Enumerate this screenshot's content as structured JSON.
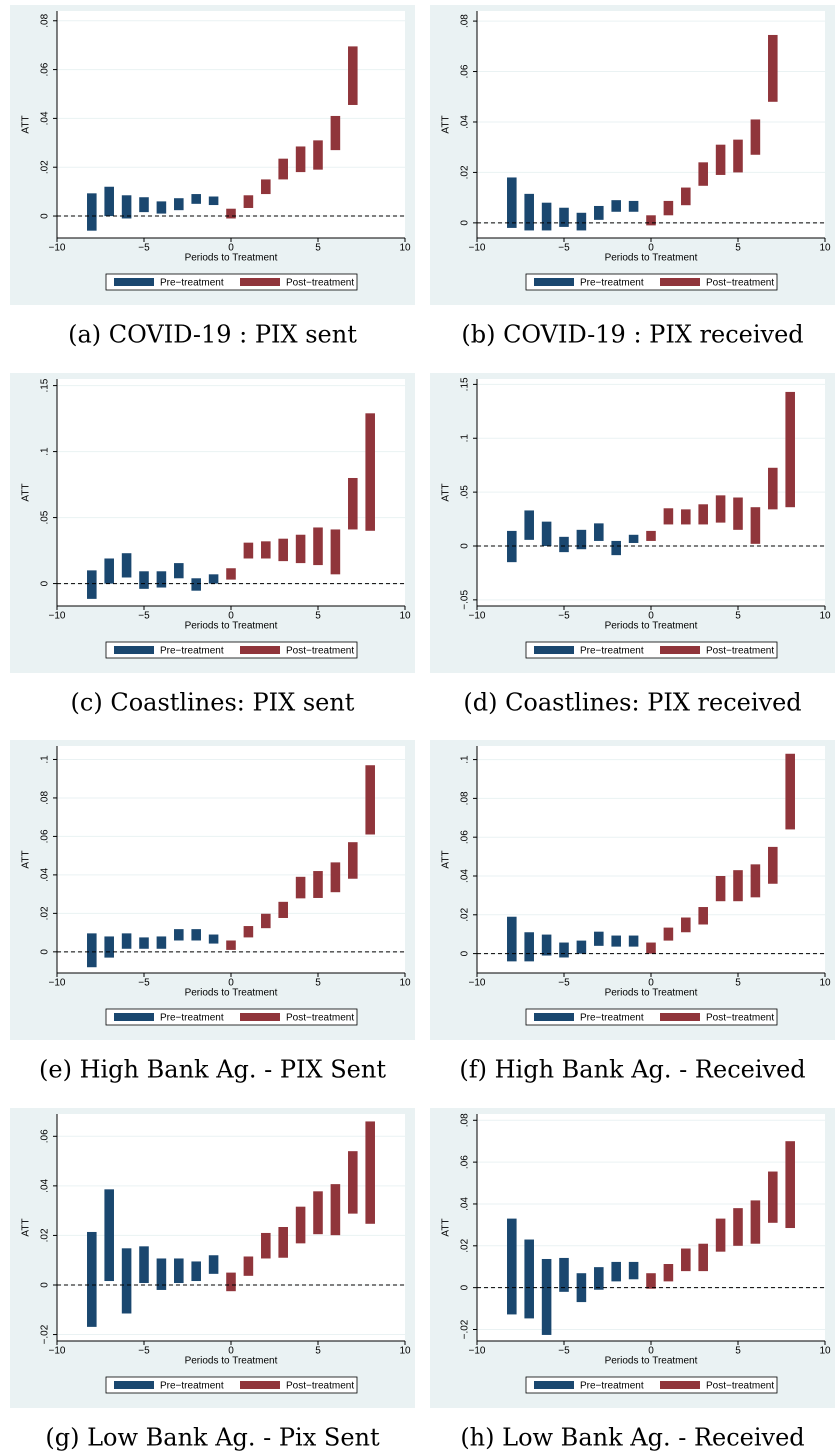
{
  "chart_data": [
    {
      "type": "rangebar",
      "caption": "(a) COVID-19 : PIX sent",
      "y_label": "ATT",
      "x_label": "Periods to Treatment",
      "xlim": [
        -10,
        10
      ],
      "xticks": [
        {
          "value": -10,
          "label": "−10"
        },
        {
          "value": -5,
          "label": "−5"
        },
        0,
        5,
        10
      ],
      "ylim": [
        -0.009,
        0.084
      ],
      "yticks": [
        0,
        {
          "value": 0.02,
          "label": ".02"
        },
        {
          "value": 0.04,
          "label": ".04"
        },
        {
          "value": 0.06,
          "label": ".06"
        },
        {
          "value": 0.08,
          "label": ".08"
        }
      ],
      "reference_line": 0,
      "grid": true,
      "series": [
        {
          "name": "Pre−treatment",
          "color": "#1a476f",
          "x": [
            -8,
            -7,
            -6,
            -5,
            -4,
            -3,
            -2,
            -1
          ],
          "low": [
            -0.006,
            0.0,
            -0.001,
            0.0016,
            0.001,
            0.0024,
            0.005,
            0.0045
          ],
          "high": [
            0.0093,
            0.012,
            0.0085,
            0.0077,
            0.006,
            0.0073,
            0.009,
            0.008
          ]
        },
        {
          "name": "Post−treatment",
          "color": "#90353b",
          "x": [
            0,
            1,
            2,
            3,
            4,
            5,
            6,
            7
          ],
          "low": [
            -0.001,
            0.0033,
            0.009,
            0.015,
            0.018,
            0.019,
            0.027,
            0.0455
          ],
          "high": [
            0.003,
            0.0085,
            0.015,
            0.0235,
            0.0285,
            0.031,
            0.041,
            0.0695
          ]
        }
      ]
    },
    {
      "type": "rangebar",
      "caption": "(b) COVID-19 : PIX received",
      "y_label": "ATT",
      "x_label": "Periods to Treatment",
      "xlim": [
        -10,
        10
      ],
      "xticks": [
        {
          "value": -10,
          "label": "−10"
        },
        {
          "value": -5,
          "label": "−5"
        },
        0,
        5,
        10
      ],
      "ylim": [
        -0.006,
        0.084
      ],
      "yticks": [
        0,
        {
          "value": 0.02,
          "label": ".02"
        },
        {
          "value": 0.04,
          "label": ".04"
        },
        {
          "value": 0.06,
          "label": ".06"
        },
        {
          "value": 0.08,
          "label": ".08"
        }
      ],
      "reference_line": 0,
      "grid": true,
      "series": [
        {
          "name": "Pre−treatment",
          "color": "#1a476f",
          "x": [
            -8,
            -7,
            -6,
            -5,
            -4,
            -3,
            -2,
            -1
          ],
          "low": [
            -0.002,
            -0.003,
            -0.003,
            -0.0016,
            -0.003,
            0.0012,
            0.0044,
            0.0044
          ],
          "high": [
            0.018,
            0.0115,
            0.008,
            0.006,
            0.004,
            0.0067,
            0.009,
            0.0087
          ]
        },
        {
          "name": "Post−treatment",
          "color": "#90353b",
          "x": [
            0,
            1,
            2,
            3,
            4,
            5,
            6,
            7
          ],
          "low": [
            -0.001,
            0.003,
            0.007,
            0.0147,
            0.019,
            0.02,
            0.027,
            0.048
          ],
          "high": [
            0.003,
            0.0087,
            0.014,
            0.024,
            0.031,
            0.033,
            0.041,
            0.0745
          ]
        }
      ]
    },
    {
      "type": "rangebar",
      "caption": "(c) Coastlines: PIX sent",
      "y_label": "ATT",
      "x_label": "Periods to Treatment",
      "xlim": [
        -10,
        10
      ],
      "xticks": [
        {
          "value": -10,
          "label": "−10"
        },
        {
          "value": -5,
          "label": "−5"
        },
        0,
        5,
        10
      ],
      "ylim": [
        -0.017,
        0.155
      ],
      "yticks": [
        0,
        {
          "value": 0.05,
          "label": ".05"
        },
        {
          "value": 0.1,
          "label": ".1"
        },
        {
          "value": 0.15,
          "label": ".15"
        }
      ],
      "reference_line": 0,
      "grid": true,
      "series": [
        {
          "name": "Pre−treatment",
          "color": "#1a476f",
          "x": [
            -8,
            -7,
            -6,
            -5,
            -4,
            -3,
            -2,
            -1
          ],
          "low": [
            -0.0116,
            0.0,
            0.0046,
            -0.004,
            -0.003,
            0.004,
            -0.0054,
            0.0
          ],
          "high": [
            0.01,
            0.019,
            0.023,
            0.0093,
            0.0093,
            0.0155,
            0.004,
            0.007
          ]
        },
        {
          "name": "Post−treatment",
          "color": "#90353b",
          "x": [
            0,
            1,
            2,
            3,
            4,
            5,
            6,
            7,
            8
          ],
          "low": [
            0.003,
            0.019,
            0.019,
            0.017,
            0.0155,
            0.014,
            0.007,
            0.041,
            0.04
          ],
          "high": [
            0.0116,
            0.031,
            0.032,
            0.034,
            0.037,
            0.0425,
            0.041,
            0.08,
            0.129
          ]
        }
      ]
    },
    {
      "type": "rangebar",
      "caption": "(d) Coastlines: PIX received",
      "y_label": "ATT",
      "x_label": "Periods to Treatment",
      "xlim": [
        -10,
        10
      ],
      "xticks": [
        {
          "value": -10,
          "label": "−10"
        },
        {
          "value": -5,
          "label": "−5"
        },
        0,
        5,
        10
      ],
      "ylim": [
        -0.0557,
        0.155
      ],
      "yticks": [
        {
          "value": -0.05,
          "label": "−.05"
        },
        0,
        {
          "value": 0.05,
          "label": ".05"
        },
        {
          "value": 0.1,
          "label": ".1"
        },
        {
          "value": 0.15,
          "label": ".15"
        }
      ],
      "reference_line": 0,
      "grid": true,
      "series": [
        {
          "name": "Pre−treatment",
          "color": "#1a476f",
          "x": [
            -8,
            -7,
            -6,
            -5,
            -4,
            -3,
            -2,
            -1
          ],
          "low": [
            -0.015,
            0.0057,
            0.0,
            -0.0057,
            -0.003,
            0.0047,
            -0.0085,
            0.0028
          ],
          "high": [
            0.014,
            0.033,
            0.0226,
            0.0085,
            0.015,
            0.021,
            0.0047,
            0.0104
          ]
        },
        {
          "name": "Post−treatment",
          "color": "#90353b",
          "x": [
            0,
            1,
            2,
            3,
            4,
            5,
            6,
            7,
            8
          ],
          "low": [
            0.0047,
            0.02,
            0.02,
            0.02,
            0.0217,
            0.015,
            0.002,
            0.034,
            0.036
          ],
          "high": [
            0.014,
            0.035,
            0.034,
            0.0387,
            0.047,
            0.045,
            0.036,
            0.0726,
            0.143
          ]
        }
      ]
    },
    {
      "type": "rangebar",
      "caption": "(e) High Bank Ag. - PIX Sent",
      "y_label": "ATT",
      "x_label": "Periods to Treatment",
      "xlim": [
        -10,
        10
      ],
      "xticks": [
        {
          "value": -10,
          "label": "−10"
        },
        {
          "value": -5,
          "label": "−5"
        },
        0,
        5,
        10
      ],
      "ylim": [
        -0.011,
        0.107
      ],
      "yticks": [
        0,
        {
          "value": 0.02,
          "label": ".02"
        },
        {
          "value": 0.04,
          "label": ".04"
        },
        {
          "value": 0.06,
          "label": ".06"
        },
        {
          "value": 0.08,
          "label": ".08"
        },
        {
          "value": 0.1,
          "label": ".1"
        }
      ],
      "reference_line": 0,
      "grid": true,
      "series": [
        {
          "name": "Pre−treatment",
          "color": "#1a476f",
          "x": [
            -8,
            -7,
            -6,
            -5,
            -4,
            -3,
            -2,
            -1
          ],
          "low": [
            -0.008,
            -0.003,
            0.0016,
            0.0016,
            0.0016,
            0.0059,
            0.0059,
            0.0043
          ],
          "high": [
            0.0096,
            0.008,
            0.0096,
            0.0075,
            0.008,
            0.0118,
            0.0118,
            0.009
          ]
        },
        {
          "name": "Post−treatment",
          "color": "#90353b",
          "x": [
            0,
            1,
            2,
            3,
            4,
            5,
            6,
            7,
            8
          ],
          "low": [
            0.001,
            0.0075,
            0.0123,
            0.0176,
            0.0278,
            0.028,
            0.031,
            0.038,
            0.061
          ],
          "high": [
            0.0059,
            0.0134,
            0.0198,
            0.026,
            0.039,
            0.042,
            0.0465,
            0.057,
            0.097
          ]
        }
      ]
    },
    {
      "type": "rangebar",
      "caption": "(f) High Bank Ag. - Received",
      "y_label": "ATT",
      "x_label": "Periods to Treatment",
      "xlim": [
        -10,
        10
      ],
      "xticks": [
        {
          "value": -10,
          "label": "−10"
        },
        {
          "value": -5,
          "label": "−5"
        },
        0,
        5,
        10
      ],
      "ylim": [
        -0.01,
        0.107
      ],
      "yticks": [
        0,
        {
          "value": 0.02,
          "label": ".02"
        },
        {
          "value": 0.04,
          "label": ".04"
        },
        {
          "value": 0.06,
          "label": ".06"
        },
        {
          "value": 0.08,
          "label": ".08"
        },
        {
          "value": 0.1,
          "label": ".1"
        }
      ],
      "reference_line": 0,
      "grid": true,
      "series": [
        {
          "name": "Pre−treatment",
          "color": "#1a476f",
          "x": [
            -8,
            -7,
            -6,
            -5,
            -4,
            -3,
            -2,
            -1
          ],
          "low": [
            -0.004,
            -0.004,
            -0.001,
            -0.002,
            0.0,
            0.004,
            0.0036,
            0.0036
          ],
          "high": [
            0.019,
            0.011,
            0.0098,
            0.0057,
            0.0067,
            0.0113,
            0.0093,
            0.0093
          ]
        },
        {
          "name": "Post−treatment",
          "color": "#90353b",
          "x": [
            0,
            1,
            2,
            3,
            4,
            5,
            6,
            7,
            8
          ],
          "low": [
            0.0,
            0.0067,
            0.011,
            0.015,
            0.027,
            0.027,
            0.029,
            0.036,
            0.064
          ],
          "high": [
            0.0057,
            0.0134,
            0.0186,
            0.024,
            0.04,
            0.043,
            0.046,
            0.055,
            0.103
          ]
        }
      ]
    },
    {
      "type": "rangebar",
      "caption": "(g) Low Bank Ag. - Pix Sent",
      "y_label": "ATT",
      "x_label": "Periods to Treatment",
      "xlim": [
        -10,
        10
      ],
      "xticks": [
        {
          "value": -10,
          "label": "−10"
        },
        {
          "value": -5,
          "label": "−5"
        },
        0,
        5,
        10
      ],
      "ylim": [
        -0.0226,
        0.069
      ],
      "yticks": [
        {
          "value": -0.02,
          "label": "−.02"
        },
        0,
        {
          "value": 0.02,
          "label": ".02"
        },
        {
          "value": 0.04,
          "label": ".04"
        },
        {
          "value": 0.06,
          "label": ".06"
        }
      ],
      "reference_line": 0,
      "grid": true,
      "series": [
        {
          "name": "Pre−treatment",
          "color": "#1a476f",
          "x": [
            -8,
            -7,
            -6,
            -5,
            -4,
            -3,
            -2,
            -1
          ],
          "low": [
            -0.0169,
            0.0016,
            -0.0115,
            0.0008,
            -0.002,
            0.0008,
            0.0016,
            0.0045
          ],
          "high": [
            0.0214,
            0.0386,
            0.0148,
            0.0156,
            0.0107,
            0.0107,
            0.0095,
            0.012
          ]
        },
        {
          "name": "Post−treatment",
          "color": "#90353b",
          "x": [
            0,
            1,
            2,
            3,
            4,
            5,
            6,
            7,
            8
          ],
          "low": [
            -0.0025,
            0.0037,
            0.0107,
            0.011,
            0.0168,
            0.0205,
            0.0201,
            0.0288,
            0.0247
          ],
          "high": [
            0.005,
            0.0115,
            0.021,
            0.0234,
            0.0316,
            0.0378,
            0.0407,
            0.054,
            0.066
          ]
        }
      ]
    },
    {
      "type": "rangebar",
      "caption": "(h) Low Bank Ag. - Received",
      "y_label": "ATT",
      "x_label": "Periods to Treatment",
      "xlim": [
        -10,
        10
      ],
      "xticks": [
        {
          "value": -10,
          "label": "−10"
        },
        {
          "value": -5,
          "label": "−5"
        },
        0,
        5,
        10
      ],
      "ylim": [
        -0.0255,
        0.083
      ],
      "yticks": [
        {
          "value": -0.02,
          "label": "−.02"
        },
        0,
        {
          "value": 0.02,
          "label": ".02"
        },
        {
          "value": 0.04,
          "label": ".04"
        },
        {
          "value": 0.06,
          "label": ".06"
        },
        {
          "value": 0.08,
          "label": ".08"
        }
      ],
      "reference_line": 0,
      "grid": true,
      "series": [
        {
          "name": "Pre−treatment",
          "color": "#1a476f",
          "x": [
            -8,
            -7,
            -6,
            -5,
            -4,
            -3,
            -2,
            -1
          ],
          "low": [
            -0.0128,
            -0.0147,
            -0.0226,
            -0.002,
            -0.0069,
            -0.001,
            0.003,
            0.004
          ],
          "high": [
            0.033,
            0.023,
            0.0137,
            0.0142,
            0.0069,
            0.0098,
            0.0123,
            0.0123
          ]
        },
        {
          "name": "Post−treatment",
          "color": "#90353b",
          "x": [
            0,
            1,
            2,
            3,
            4,
            5,
            6,
            7,
            8
          ],
          "low": [
            -0.0005,
            0.003,
            0.0079,
            0.0079,
            0.0172,
            0.02,
            0.021,
            0.031,
            0.0285
          ],
          "high": [
            0.0069,
            0.0113,
            0.0187,
            0.021,
            0.033,
            0.038,
            0.0417,
            0.0555,
            0.07
          ]
        }
      ]
    }
  ]
}
